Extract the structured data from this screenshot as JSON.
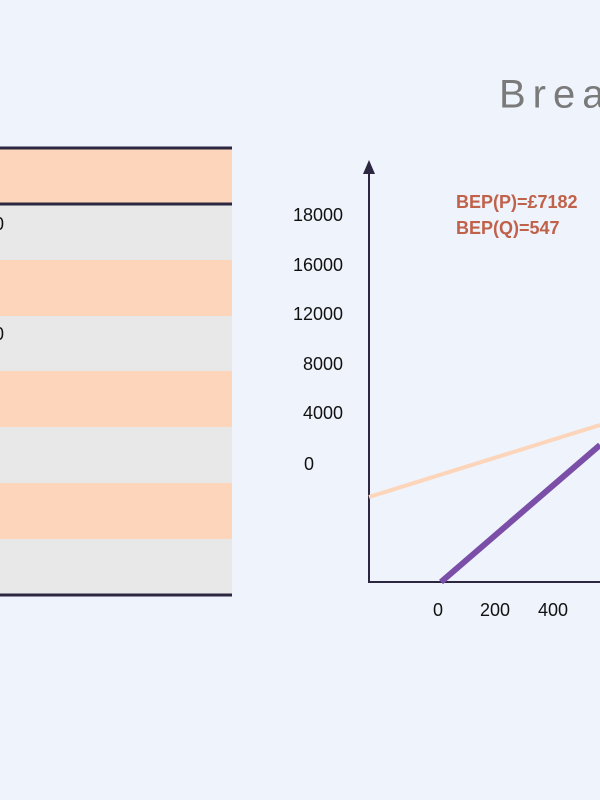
{
  "slide": {
    "title": "Brea",
    "table": {
      "cells": [
        "0",
        "0"
      ]
    },
    "chart": {
      "annotations": [
        "BEP(P)=£7182",
        "BEP(Q)=547"
      ],
      "y_labels": [
        "18000",
        "16000",
        "12000",
        "8000",
        "4000",
        "0"
      ],
      "x_labels": [
        "0",
        "200",
        "400"
      ]
    }
  }
}
